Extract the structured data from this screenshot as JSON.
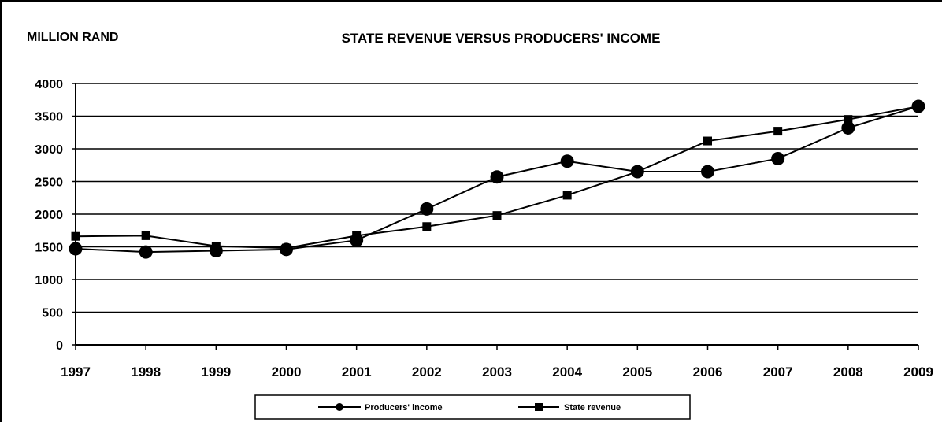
{
  "chart_data": {
    "type": "line",
    "title": "STATE REVENUE VERSUS PRODUCERS' INCOME",
    "ylabel": "MILLION RAND",
    "xlabel": "",
    "categories": [
      "1997",
      "1998",
      "1999",
      "2000",
      "2001",
      "2002",
      "2003",
      "2004",
      "2005",
      "2006",
      "2007",
      "2008",
      "2009"
    ],
    "ylim": [
      0,
      4000
    ],
    "yticks": [
      "0",
      "500",
      "1000",
      "1500",
      "2000",
      "2500",
      "3000",
      "3500",
      "4000"
    ],
    "grid": true,
    "legend_position": "bottom",
    "series": [
      {
        "name": "Producers' income",
        "marker": "circle",
        "color": "#000000",
        "values": [
          1470,
          1420,
          1440,
          1460,
          1600,
          2080,
          2570,
          2810,
          2650,
          2650,
          2850,
          3320,
          3650
        ]
      },
      {
        "name": "State revenue",
        "marker": "square",
        "color": "#000000",
        "values": [
          1660,
          1670,
          1510,
          1480,
          1670,
          1810,
          1980,
          2290,
          2650,
          3120,
          3270,
          3450,
          3650
        ]
      }
    ]
  }
}
